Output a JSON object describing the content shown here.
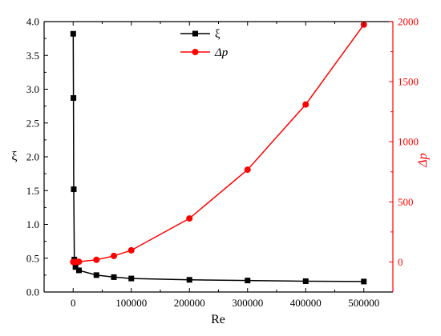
{
  "chart_data": {
    "type": "line",
    "title": "",
    "xlabel": "Re",
    "ylabel_left": "ξ",
    "ylabel_right": "Δp",
    "xlim": [
      -50000,
      550000
    ],
    "ylim_left": [
      0.0,
      4.0
    ],
    "ylim_right": [
      -250,
      2000
    ],
    "x_ticks": [
      0,
      100000,
      200000,
      300000,
      400000,
      500000
    ],
    "x_tick_labels": [
      "0",
      "100000",
      "200000",
      "300000",
      "400000",
      "500000"
    ],
    "y_left_ticks": [
      0.0,
      0.5,
      1.0,
      1.5,
      2.0,
      2.5,
      3.0,
      3.5,
      4.0
    ],
    "y_left_tick_labels": [
      "0.0",
      "0.5",
      "1.0",
      "1.5",
      "2.0",
      "2.5",
      "3.0",
      "3.5",
      "4.0"
    ],
    "y_right_ticks": [
      0,
      500,
      1000,
      1500,
      2000
    ],
    "y_right_tick_labels": [
      "0",
      "500",
      "1000",
      "1500",
      "2000"
    ],
    "grid": false,
    "legend_position": "top-center",
    "colors": {
      "xi": "#000000",
      "dp": "#ff0000",
      "axis_left": "#000000",
      "axis_right": "#ff0000"
    },
    "series": [
      {
        "name": "ξ",
        "axis": "left",
        "marker": "square",
        "x": [
          100,
          500,
          1000,
          2000,
          4000,
          10000,
          40000,
          70000,
          100000,
          200000,
          300000,
          400000,
          500000
        ],
        "y": [
          3.82,
          2.87,
          1.52,
          0.48,
          0.37,
          0.32,
          0.25,
          0.22,
          0.2,
          0.18,
          0.17,
          0.16,
          0.155
        ]
      },
      {
        "name": "Δp",
        "axis": "right",
        "marker": "circle",
        "x": [
          100,
          500,
          1000,
          2000,
          4000,
          10000,
          40000,
          70000,
          100000,
          200000,
          300000,
          400000,
          500000
        ],
        "y": [
          0,
          0,
          0,
          0,
          0,
          2,
          18,
          50,
          97,
          362,
          768,
          1310,
          1975
        ]
      }
    ]
  }
}
